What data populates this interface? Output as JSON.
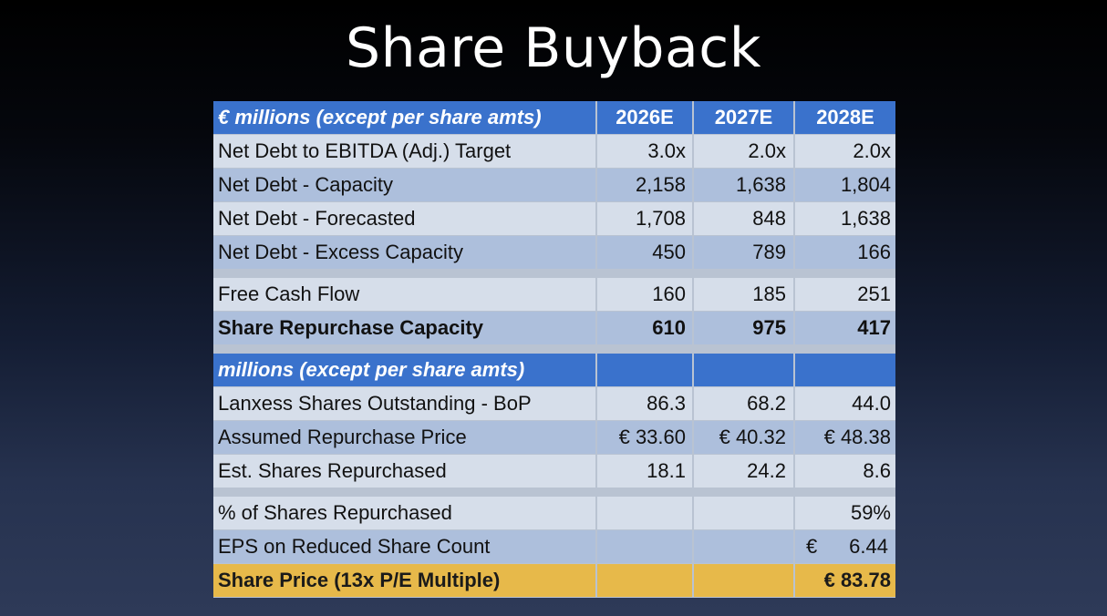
{
  "title": "Share Buyback",
  "section1": {
    "header": [
      "€ millions (except per share amts)",
      "2026E",
      "2027E",
      "2028E"
    ],
    "rows": [
      {
        "label": "Net Debt to EBITDA (Adj.) Target",
        "values": [
          "3.0x",
          "2.0x",
          "2.0x"
        ]
      },
      {
        "label": "Net Debt - Capacity",
        "values": [
          "2,158",
          "1,638",
          "1,804"
        ]
      },
      {
        "label": "Net Debt - Forecasted",
        "values": [
          "1,708",
          "848",
          "1,638"
        ]
      },
      {
        "label": "Net Debt - Excess Capacity",
        "values": [
          "450",
          "789",
          "166"
        ]
      }
    ]
  },
  "section2": {
    "rows": [
      {
        "label": "Free Cash Flow",
        "values": [
          "160",
          "185",
          "251"
        ]
      },
      {
        "label": "Share Repurchase Capacity",
        "values": [
          "610",
          "975",
          "417"
        ]
      }
    ]
  },
  "section3": {
    "header": [
      "millions (except per share amts)",
      "",
      "",
      ""
    ],
    "rows": [
      {
        "label": "Lanxess Shares Outstanding - BoP",
        "values": [
          "86.3",
          "68.2",
          "44.0"
        ]
      },
      {
        "label": "Assumed Repurchase Price",
        "values": [
          "€ 33.60",
          "€ 40.32",
          "€ 48.38"
        ]
      },
      {
        "label": "Est. Shares Repurchased",
        "values": [
          "18.1",
          "24.2",
          "8.6"
        ]
      }
    ]
  },
  "section4": {
    "rows": [
      {
        "label": "% of Shares Repurchased",
        "values": [
          "",
          "",
          "59%"
        ]
      },
      {
        "label": "EPS on Reduced Share Count",
        "values": [
          "",
          "",
          ""
        ],
        "currency": "€",
        "amount": "6.44"
      },
      {
        "label": "Share Price (13x P/E Multiple)",
        "values": [
          "",
          "",
          "€ 83.78"
        ]
      }
    ]
  }
}
